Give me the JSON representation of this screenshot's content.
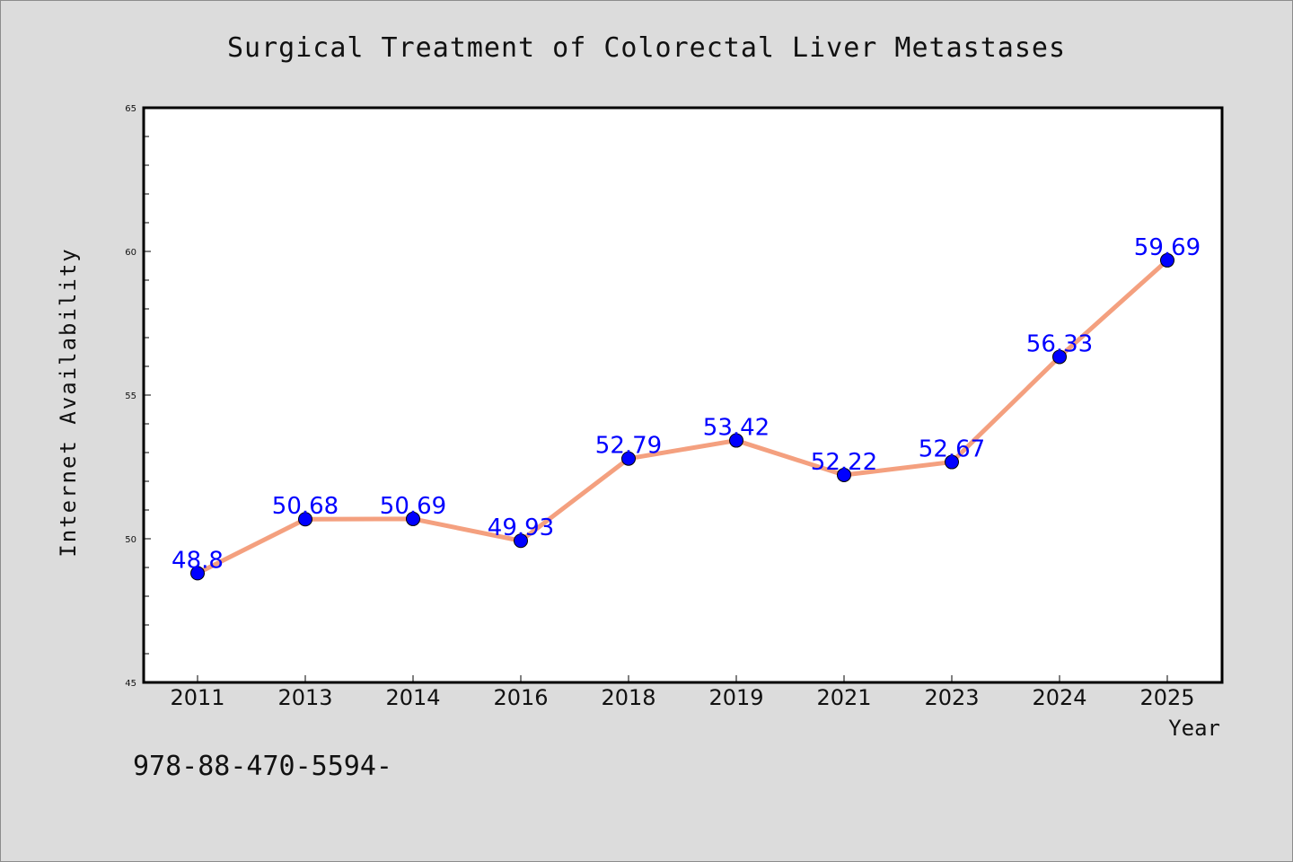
{
  "chart_data": {
    "type": "line",
    "title": "Surgical Treatment of Colorectal Liver Metastases",
    "xlabel": "Year",
    "ylabel": "Internet Availability",
    "categories": [
      "2011",
      "2013",
      "2014",
      "2016",
      "2018",
      "2019",
      "2021",
      "2023",
      "2024",
      "2025"
    ],
    "series": [
      {
        "values": [
          48.8,
          50.68,
          50.69,
          49.93,
          52.79,
          53.42,
          52.22,
          52.67,
          56.33,
          59.69
        ],
        "data_labels": [
          "48.8",
          "50.68",
          "50.69",
          "49.93",
          "52.79",
          "53.42",
          "52.22",
          "52.67",
          "56.33",
          "59.69"
        ],
        "line_color": "#f4a07f",
        "marker_color": "#0000ff"
      }
    ],
    "ylim": [
      45,
      65
    ],
    "yticks": [
      45,
      50,
      55,
      60,
      65
    ],
    "ytick_labels": [
      "45",
      "50",
      "55",
      "60",
      "65"
    ],
    "label_color": "#0000ff",
    "grid": false,
    "legend": "none"
  },
  "footer": {
    "code": "978-88-470-5594-"
  },
  "colors": {
    "background": "#dcdcdc",
    "plot_background": "#ffffff",
    "axis": "#000000"
  }
}
